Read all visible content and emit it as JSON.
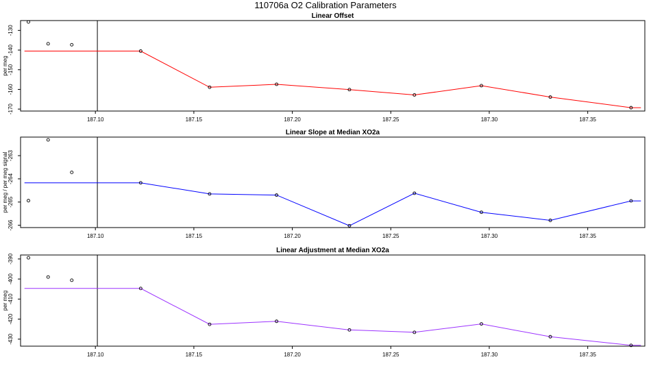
{
  "page": {
    "title": "110706a   O2 Calibration Parameters"
  },
  "chart_data": [
    {
      "type": "line",
      "title": "Linear Offset",
      "xlabel": "",
      "ylabel": "per meg",
      "xlim": [
        187.062,
        187.379
      ],
      "ylim": [
        -171,
        -125
      ],
      "xticks": [
        187.1,
        187.15,
        187.2,
        187.25,
        187.3,
        187.35
      ],
      "xtick_labels": [
        "187.10",
        "187.15",
        "187.20",
        "187.25",
        "187.30",
        "187.35"
      ],
      "yticks": [
        -130,
        -140,
        -150,
        -160,
        -170
      ],
      "ytick_labels": [
        "-130",
        "-140",
        "-150",
        "-160",
        "-170"
      ],
      "vline_x": 187.101,
      "line_color": "#ff0000",
      "grid": false,
      "points": [
        {
          "x": 187.066,
          "y": -125.7
        },
        {
          "x": 187.076,
          "y": -136.8
        },
        {
          "x": 187.088,
          "y": -137.3
        },
        {
          "x": 187.123,
          "y": -140.5
        },
        {
          "x": 187.158,
          "y": -158.9
        },
        {
          "x": 187.192,
          "y": -157.4
        },
        {
          "x": 187.229,
          "y": -160.1
        },
        {
          "x": 187.262,
          "y": -162.8
        },
        {
          "x": 187.296,
          "y": -158.1
        },
        {
          "x": 187.331,
          "y": -163.9
        },
        {
          "x": 187.372,
          "y": -169.3
        }
      ],
      "line": [
        {
          "x": 187.064,
          "y": -140.5
        },
        {
          "x": 187.123,
          "y": -140.5
        },
        {
          "x": 187.158,
          "y": -158.9
        },
        {
          "x": 187.192,
          "y": -157.4
        },
        {
          "x": 187.229,
          "y": -160.1
        },
        {
          "x": 187.262,
          "y": -162.8
        },
        {
          "x": 187.296,
          "y": -158.1
        },
        {
          "x": 187.331,
          "y": -163.9
        },
        {
          "x": 187.372,
          "y": -169.3
        },
        {
          "x": 187.377,
          "y": -169.3
        }
      ]
    },
    {
      "type": "line",
      "title": "Linear Slope at Median XO2a",
      "xlabel": "",
      "ylabel": "per meg / per meg signal",
      "xlim": [
        187.062,
        187.379
      ],
      "ylim": [
        -266.1,
        -262.2
      ],
      "xticks": [
        187.1,
        187.15,
        187.2,
        187.25,
        187.3,
        187.35
      ],
      "xtick_labels": [
        "187.10",
        "187.15",
        "187.20",
        "187.25",
        "187.30",
        "187.35"
      ],
      "yticks": [
        -263,
        -264,
        -265,
        -266
      ],
      "ytick_labels": [
        "-263",
        "-264",
        "-265",
        "-266"
      ],
      "vline_x": 187.101,
      "line_color": "#0000ff",
      "grid": false,
      "points": [
        {
          "x": 187.066,
          "y": -264.94
        },
        {
          "x": 187.076,
          "y": -262.32
        },
        {
          "x": 187.088,
          "y": -263.72
        },
        {
          "x": 187.123,
          "y": -264.17
        },
        {
          "x": 187.158,
          "y": -264.65
        },
        {
          "x": 187.192,
          "y": -264.7
        },
        {
          "x": 187.229,
          "y": -266.02
        },
        {
          "x": 187.262,
          "y": -264.62
        },
        {
          "x": 187.296,
          "y": -265.44
        },
        {
          "x": 187.331,
          "y": -265.79
        },
        {
          "x": 187.372,
          "y": -264.95
        }
      ],
      "line": [
        {
          "x": 187.064,
          "y": -264.17
        },
        {
          "x": 187.123,
          "y": -264.17
        },
        {
          "x": 187.158,
          "y": -264.65
        },
        {
          "x": 187.192,
          "y": -264.7
        },
        {
          "x": 187.229,
          "y": -266.02
        },
        {
          "x": 187.262,
          "y": -264.62
        },
        {
          "x": 187.296,
          "y": -265.44
        },
        {
          "x": 187.331,
          "y": -265.79
        },
        {
          "x": 187.372,
          "y": -264.95
        },
        {
          "x": 187.377,
          "y": -264.95
        }
      ]
    },
    {
      "type": "line",
      "title": "Linear Adjustment at Median XO2a",
      "xlabel": "",
      "ylabel": "per meg",
      "xlim": [
        187.062,
        187.379
      ],
      "ylim": [
        -433.5,
        -388
      ],
      "xticks": [
        187.1,
        187.15,
        187.2,
        187.25,
        187.3,
        187.35
      ],
      "xtick_labels": [
        "187.10",
        "187.15",
        "187.20",
        "187.25",
        "187.30",
        "187.35"
      ],
      "yticks": [
        -390,
        -400,
        -410,
        -420,
        -430
      ],
      "ytick_labels": [
        "-390",
        "-400",
        "-410",
        "-420",
        "-430"
      ],
      "vline_x": 187.101,
      "line_color": "#9b30ff",
      "grid": false,
      "points": [
        {
          "x": 187.066,
          "y": -389.4
        },
        {
          "x": 187.076,
          "y": -399.0
        },
        {
          "x": 187.088,
          "y": -400.6
        },
        {
          "x": 187.123,
          "y": -404.7
        },
        {
          "x": 187.158,
          "y": -422.6
        },
        {
          "x": 187.192,
          "y": -421.1
        },
        {
          "x": 187.229,
          "y": -425.4
        },
        {
          "x": 187.262,
          "y": -426.6
        },
        {
          "x": 187.296,
          "y": -422.4
        },
        {
          "x": 187.331,
          "y": -428.8
        },
        {
          "x": 187.372,
          "y": -433.1
        }
      ],
      "line": [
        {
          "x": 187.064,
          "y": -404.7
        },
        {
          "x": 187.123,
          "y": -404.7
        },
        {
          "x": 187.158,
          "y": -422.6
        },
        {
          "x": 187.192,
          "y": -421.1
        },
        {
          "x": 187.229,
          "y": -425.4
        },
        {
          "x": 187.262,
          "y": -426.6
        },
        {
          "x": 187.296,
          "y": -422.4
        },
        {
          "x": 187.331,
          "y": -428.8
        },
        {
          "x": 187.372,
          "y": -433.1
        },
        {
          "x": 187.377,
          "y": -433.1
        }
      ]
    }
  ]
}
